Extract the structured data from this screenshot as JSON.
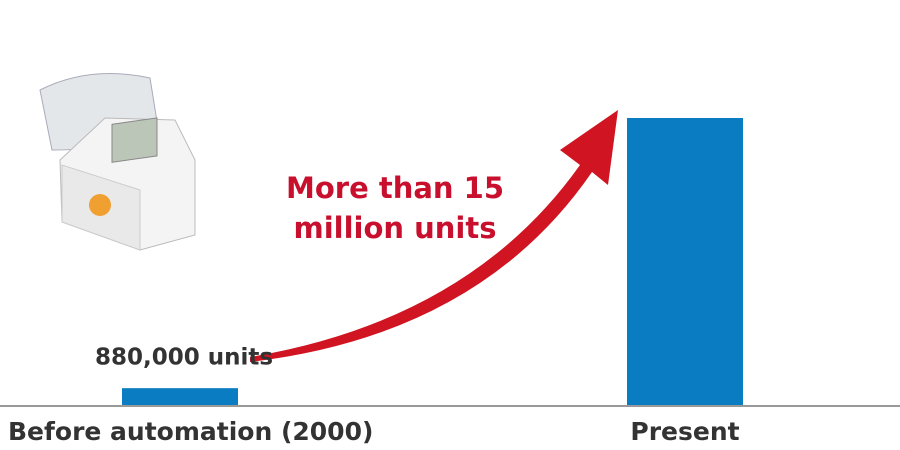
{
  "chart_data": {
    "type": "bar",
    "categories": [
      "Before automation (2000)",
      "Present"
    ],
    "values": [
      880000,
      15000000
    ],
    "value_labels": [
      "880,000 units",
      "More than 15 million units"
    ],
    "color": "#0a7cc1"
  }
}
